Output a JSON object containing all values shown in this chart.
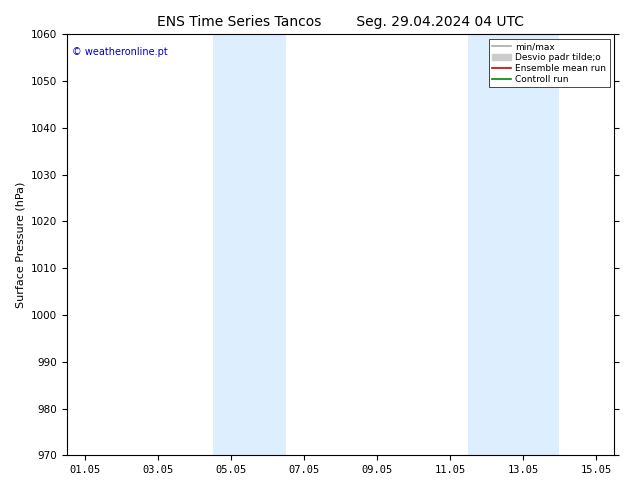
{
  "title_left": "ENS Time Series Tancos",
  "title_right": "Seg. 29.04.2024 04 UTC",
  "ylabel": "Surface Pressure (hPa)",
  "ylim": [
    970,
    1060
  ],
  "yticks": [
    970,
    980,
    990,
    1000,
    1010,
    1020,
    1030,
    1040,
    1050,
    1060
  ],
  "xlim_dates": [
    "01.05",
    "03.05",
    "05.05",
    "07.05",
    "09.05",
    "11.05",
    "13.05",
    "15.05"
  ],
  "x_positions": [
    0,
    2,
    4,
    6,
    8,
    10,
    12,
    14
  ],
  "xlim": [
    -0.5,
    14.5
  ],
  "shaded_regions": [
    {
      "xmin": 3.5,
      "xmax": 5.5,
      "color": "#ddeeff"
    },
    {
      "xmin": 10.5,
      "xmax": 13.0,
      "color": "#ddeeff"
    }
  ],
  "watermark_text": "© weatheronline.pt",
  "watermark_color": "#0000cc",
  "legend_entries": [
    {
      "label": "min/max",
      "color": "#aaaaaa",
      "lw": 1.2,
      "ls": "-"
    },
    {
      "label": "Desvio padr tilde;o",
      "color": "#cccccc",
      "lw": 7,
      "ls": "-"
    },
    {
      "label": "Ensemble mean run",
      "color": "#cc0000",
      "lw": 1.2,
      "ls": "-"
    },
    {
      "label": "Controll run",
      "color": "#008800",
      "lw": 1.2,
      "ls": "-"
    }
  ],
  "bg_color": "#ffffff",
  "plot_bg_color": "#ffffff",
  "title_fontsize": 10,
  "label_fontsize": 8,
  "tick_fontsize": 7.5,
  "watermark_fontsize": 7
}
